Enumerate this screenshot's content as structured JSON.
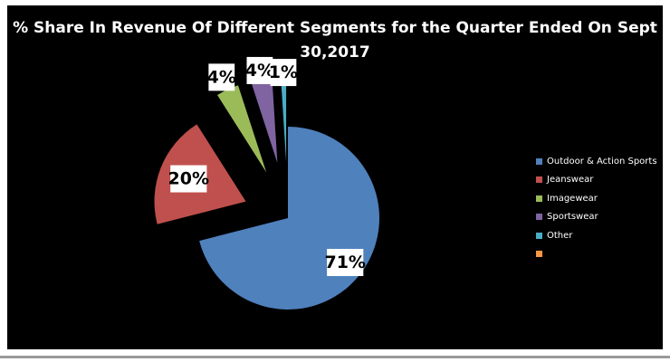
{
  "chart_data": {
    "type": "pie",
    "title": "% Share In Revenue Of Different Segments for the Quarter Ended On Sept 30,2017",
    "title_lines": [
      "% Share In Revenue Of Different Segments for the Quarter Ended On Sept",
      "30,2017"
    ],
    "exploded": true,
    "legend_position": "right",
    "slices": [
      {
        "name": "Outdoor & Action Sports",
        "value": 71,
        "label": "71%",
        "color": "#4F81BD"
      },
      {
        "name": "Jeanswear",
        "value": 20,
        "label": "20%",
        "color": "#C0504D"
      },
      {
        "name": "Imagewear",
        "value": 4,
        "label": "4%",
        "color": "#9BBB59"
      },
      {
        "name": "Sportswear",
        "value": 4,
        "label": "4%",
        "color": "#8064A2"
      },
      {
        "name": "Other",
        "value": 1,
        "label": "1%",
        "color": "#4BACC6"
      },
      {
        "name": "",
        "value": 0,
        "label": "",
        "color": "#F79646"
      }
    ]
  }
}
